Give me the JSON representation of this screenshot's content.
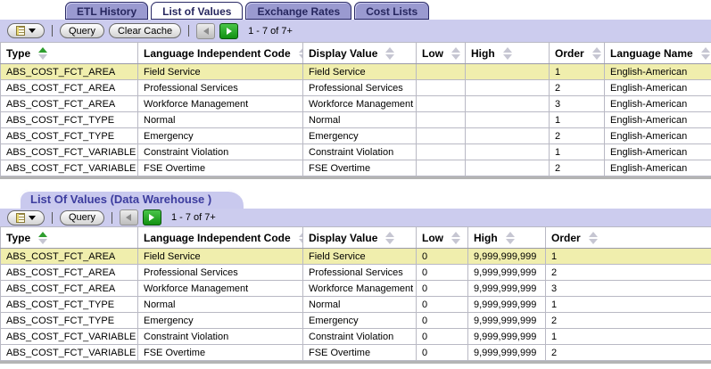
{
  "tabs": {
    "items": [
      {
        "label": "ETL History",
        "active": false
      },
      {
        "label": "List of Values",
        "active": true
      },
      {
        "label": "Exchange Rates",
        "active": false
      },
      {
        "label": "Cost Lists",
        "active": false
      }
    ]
  },
  "toolbar_top": {
    "query_label": "Query",
    "clear_cache_label": "Clear Cache",
    "counter": "1 - 7 of 7+"
  },
  "warehouse_section": {
    "title": "List Of Values (Data Warehouse )",
    "query_label": "Query",
    "counter": "1 - 7 of 7+"
  },
  "grid_main": {
    "columns": [
      {
        "label": "Type",
        "sorted": "asc"
      },
      {
        "label": "Language Independent Code",
        "sorted": null
      },
      {
        "label": "Display Value",
        "sorted": null
      },
      {
        "label": "Low",
        "sorted": null
      },
      {
        "label": "High",
        "sorted": null
      },
      {
        "label": "Order",
        "sorted": null
      },
      {
        "label": "Language Name",
        "sorted": null
      }
    ],
    "highlighted_row": 0,
    "rows": [
      [
        "ABS_COST_FCT_AREA",
        "Field Service",
        "Field Service",
        "",
        "",
        "1",
        "English-American"
      ],
      [
        "ABS_COST_FCT_AREA",
        "Professional Services",
        "Professional Services",
        "",
        "",
        "2",
        "English-American"
      ],
      [
        "ABS_COST_FCT_AREA",
        "Workforce Management",
        "Workforce Management",
        "",
        "",
        "3",
        "English-American"
      ],
      [
        "ABS_COST_FCT_TYPE",
        "Normal",
        "Normal",
        "",
        "",
        "1",
        "English-American"
      ],
      [
        "ABS_COST_FCT_TYPE",
        "Emergency",
        "Emergency",
        "",
        "",
        "2",
        "English-American"
      ],
      [
        "ABS_COST_FCT_VARIABLE",
        "Constraint Violation",
        "Constraint Violation",
        "",
        "",
        "1",
        "English-American"
      ],
      [
        "ABS_COST_FCT_VARIABLE",
        "FSE Overtime",
        "FSE Overtime",
        "",
        "",
        "2",
        "English-American"
      ]
    ]
  },
  "grid_warehouse": {
    "columns": [
      {
        "label": "Type",
        "sorted": "asc"
      },
      {
        "label": "Language Independent Code",
        "sorted": null
      },
      {
        "label": "Display Value",
        "sorted": null
      },
      {
        "label": "Low",
        "sorted": null
      },
      {
        "label": "High",
        "sorted": null
      },
      {
        "label": "Order",
        "sorted": null
      }
    ],
    "highlighted_row": 0,
    "rows": [
      [
        "ABS_COST_FCT_AREA",
        "Field Service",
        "Field Service",
        "0",
        "9,999,999,999",
        "1"
      ],
      [
        "ABS_COST_FCT_AREA",
        "Professional Services",
        "Professional Services",
        "0",
        "9,999,999,999",
        "2"
      ],
      [
        "ABS_COST_FCT_AREA",
        "Workforce Management",
        "Workforce Management",
        "0",
        "9,999,999,999",
        "3"
      ],
      [
        "ABS_COST_FCT_TYPE",
        "Normal",
        "Normal",
        "0",
        "9,999,999,999",
        "1"
      ],
      [
        "ABS_COST_FCT_TYPE",
        "Emergency",
        "Emergency",
        "0",
        "9,999,999,999",
        "2"
      ],
      [
        "ABS_COST_FCT_VARIABLE",
        "Constraint Violation",
        "Constraint Violation",
        "0",
        "9,999,999,999",
        "1"
      ],
      [
        "ABS_COST_FCT_VARIABLE",
        "FSE Overtime",
        "FSE Overtime",
        "0",
        "9,999,999,999",
        "2"
      ]
    ]
  },
  "colors": {
    "inactive_tab_bg": "#9a9ad0",
    "toolbar_bg": "#ccccee",
    "highlight_row_bg": "#f0eead",
    "sorted_arrow": "#2f9e2f",
    "tab_text": "#26265e",
    "section_title_text": "#3c3c9e"
  }
}
